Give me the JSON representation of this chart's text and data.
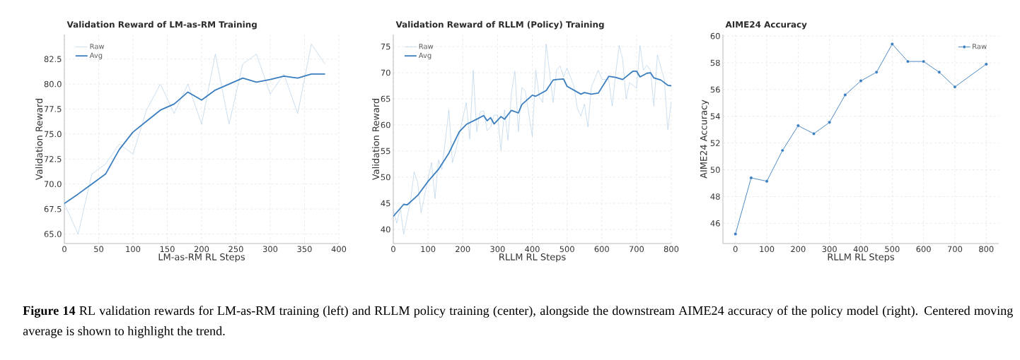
{
  "chart_data": [
    {
      "type": "line",
      "title": "Validation Reward of LM-as-RM Training",
      "xlabel": "LM-as-RM RL Steps",
      "ylabel": "Validation Reward",
      "series": [
        {
          "name": "Raw",
          "color": "#a9c9e6",
          "x": [
            0,
            20,
            40,
            60,
            80,
            100,
            120,
            140,
            160,
            180,
            200,
            220,
            240,
            260,
            280,
            300,
            320,
            340,
            360,
            380
          ],
          "values": [
            68.05,
            65.0,
            71.0,
            72.0,
            74.0,
            73.0,
            77.45,
            80.0,
            77.05,
            80.0,
            76.0,
            83.0,
            76.0,
            82.0,
            83.0,
            79.0,
            81.0,
            77.05,
            84.0,
            82.0
          ]
        },
        {
          "name": "Avg",
          "color": "#3a7ebf",
          "x": [
            0,
            20,
            40,
            60,
            80,
            100,
            120,
            140,
            160,
            180,
            200,
            220,
            240,
            260,
            280,
            300,
            320,
            340,
            360,
            380
          ],
          "values": [
            68.05,
            69.0,
            70.0,
            71.0,
            73.45,
            75.2,
            76.3,
            77.4,
            78.0,
            79.2,
            78.4,
            79.4,
            80.0,
            80.6,
            80.2,
            80.45,
            80.8,
            80.6,
            81.0,
            81.0
          ]
        }
      ],
      "xlim": [
        0,
        400
      ],
      "ylim": [
        64.05,
        84.95
      ],
      "xticks": [
        0,
        50,
        100,
        150,
        200,
        250,
        300,
        350,
        400
      ],
      "yticks": [
        {
          "value": 65,
          "label": "65.0"
        },
        {
          "value": 67.5,
          "label": "67.5"
        },
        {
          "value": 70,
          "label": "70.0"
        },
        {
          "value": 72.5,
          "label": "72.5"
        },
        {
          "value": 75,
          "label": "75.0"
        },
        {
          "value": 77.5,
          "label": "77.5"
        },
        {
          "value": 80,
          "label": "80.0"
        },
        {
          "value": 82.5,
          "label": "82.5"
        }
      ],
      "grid": true,
      "legend": "top left",
      "annotations": [
        "**Figure 14** RL validation rewards for LM-as-RM training (left) and RLLM policy training (center), alongside the downstream AIME24 accuracy of the policy model (right). Centered moving average is shown to highlight the trend."
      ]
    },
    {
      "type": "line",
      "title": "Validation Reward of RLLM (Policy) Training",
      "xlabel": "RLLM RL Steps",
      "ylabel": "Validation Reward",
      "series": [
        {
          "name": "Raw",
          "color": "#a9c9e6",
          "x": [
            0,
            10,
            20,
            30,
            50,
            60,
            70,
            80,
            100,
            110,
            120,
            130,
            140,
            160,
            170,
            180,
            190,
            210,
            220,
            230,
            240,
            250,
            260,
            270,
            280,
            290,
            300,
            310,
            320,
            330,
            340,
            350,
            360,
            370,
            380,
            400,
            410,
            420,
            430,
            440,
            460,
            470,
            480,
            490,
            500,
            520,
            530,
            540,
            550,
            560,
            570,
            590,
            600,
            620,
            630,
            640,
            650,
            660,
            670,
            680,
            700,
            710,
            720,
            730,
            740,
            750,
            760,
            780,
            790,
            800
          ],
          "values": [
            43.9,
            41.2,
            44.1,
            39.1,
            45.7,
            51.0,
            49.0,
            43.2,
            49.7,
            52.8,
            45.9,
            53.3,
            51.5,
            62.9,
            52.8,
            55.1,
            58.2,
            64.3,
            57.3,
            70.5,
            58.7,
            62.5,
            62.7,
            58.9,
            59.6,
            61.9,
            61.9,
            55.1,
            62.9,
            57.1,
            66.1,
            70.3,
            58.7,
            67.2,
            66.5,
            57.8,
            70.5,
            65.4,
            64.3,
            75.5,
            64.3,
            70.5,
            71.3,
            69.2,
            70.9,
            67.4,
            63.1,
            61.7,
            64.0,
            59.6,
            67.2,
            70.5,
            68.7,
            68.7,
            63.6,
            69.9,
            75.2,
            72.6,
            65.0,
            68.1,
            67.0,
            75.2,
            70.5,
            71.4,
            70.5,
            63.6,
            73.4,
            68.7,
            59.1,
            64.5
          ]
        },
        {
          "name": "Avg",
          "color": "#3a7ebf",
          "x": [
            0,
            30,
            40,
            70,
            100,
            130,
            160,
            190,
            210,
            240,
            260,
            270,
            280,
            290,
            310,
            320,
            340,
            360,
            370,
            400,
            410,
            440,
            460,
            470,
            490,
            500,
            540,
            550,
            570,
            590,
            620,
            640,
            660,
            690,
            700,
            710,
            730,
            740,
            750,
            770,
            790,
            800
          ],
          "values": [
            42.5,
            44.8,
            44.7,
            46.5,
            49.2,
            51.5,
            54.6,
            58.7,
            60.1,
            61.1,
            61.8,
            60.8,
            61.4,
            60.2,
            61.6,
            61.1,
            62.8,
            62.3,
            63.9,
            65.7,
            65.5,
            66.6,
            68.6,
            68.7,
            68.8,
            67.4,
            65.9,
            66.2,
            65.9,
            66.1,
            69.3,
            69.1,
            68.7,
            70.3,
            70.3,
            69.2,
            69.9,
            70.0,
            69.0,
            68.6,
            67.6,
            67.5
          ]
        }
      ],
      "xlim": [
        0,
        800
      ],
      "ylim": [
        37.3,
        77.3
      ],
      "xticks": [
        0,
        100,
        200,
        300,
        400,
        500,
        600,
        700,
        800
      ],
      "yticks": [
        40,
        45,
        50,
        55,
        60,
        65,
        70,
        75
      ],
      "grid": true,
      "legend": "top left"
    },
    {
      "type": "line",
      "title": "AIME24 Accuracy",
      "xlabel": "RLLM RL Steps",
      "ylabel": "AIME24 Accuracy",
      "series": [
        {
          "name": "Raw",
          "color": "#3a7ebf",
          "x": [
            0,
            50,
            100,
            150,
            200,
            250,
            300,
            350,
            400,
            450,
            500,
            550,
            600,
            650,
            700,
            800
          ],
          "values": [
            45.2,
            49.4,
            49.15,
            51.45,
            53.3,
            52.7,
            53.55,
            55.6,
            56.65,
            57.3,
            59.4,
            58.1,
            58.1,
            57.3,
            56.2,
            57.9
          ]
        }
      ],
      "xlim": [
        -40,
        840
      ],
      "ylim": [
        44.49,
        60.11
      ],
      "xticks": [
        0,
        100,
        200,
        300,
        400,
        500,
        600,
        700,
        800
      ],
      "yticks": [
        46,
        48,
        50,
        52,
        54,
        56,
        58,
        60
      ],
      "grid": true,
      "legend": "top right",
      "marker": "circle"
    }
  ]
}
